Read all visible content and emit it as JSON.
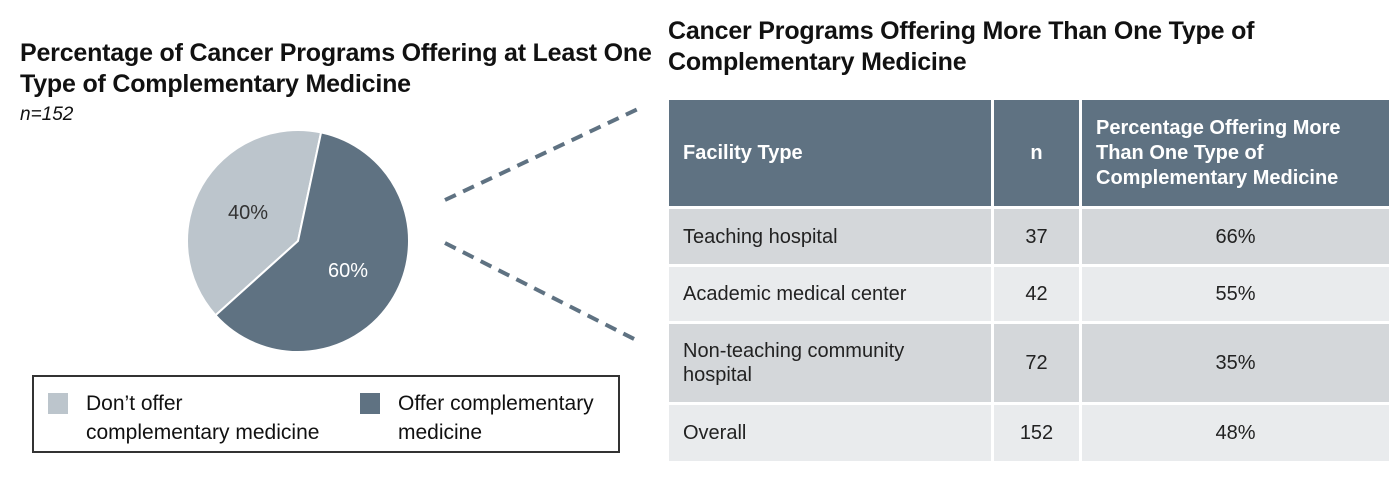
{
  "chart_data": [
    {
      "type": "pie",
      "title": "Percentage of Cancer Programs Offering at Least One Type of Complementary Medicine",
      "subtitle": "n=152",
      "slices": [
        {
          "name": "Don’t offer complementary medicine",
          "value": 40,
          "label": "40%",
          "color": "#bcc5cc"
        },
        {
          "name": "Offer complementary medicine",
          "value": 60,
          "label": "60%",
          "color": "#5f7282"
        }
      ],
      "legend_placement": "bottom"
    },
    {
      "type": "table",
      "title": "Cancer Programs Offering More Than One Type of Complementary Medicine",
      "columns": [
        "Facility Type",
        "n",
        "Percentage Offering More Than One Type of Complementary Medicine"
      ],
      "rows": [
        [
          "Teaching hospital",
          "37",
          "66%"
        ],
        [
          "Academic medical center",
          "42",
          "55%"
        ],
        [
          "Non-teaching community hospital",
          "72",
          "35%"
        ],
        [
          "Overall",
          "152",
          "48%"
        ]
      ]
    }
  ],
  "colors": {
    "header": "#5f7282",
    "row_dark": "#d4d7da",
    "row_light": "#e9ebed",
    "connector": "#5f7282"
  }
}
